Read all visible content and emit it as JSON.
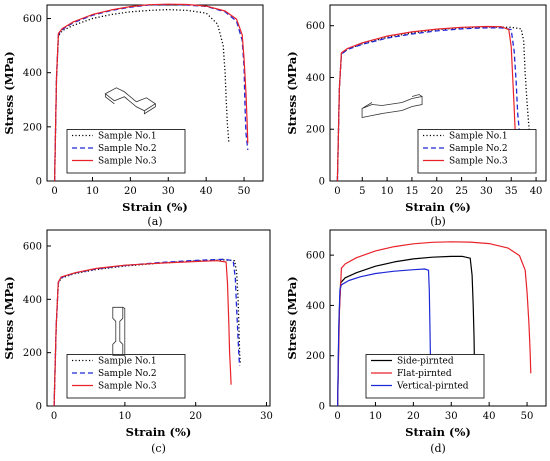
{
  "colors": {
    "series1": "#000000",
    "series2": "#1f28d6",
    "series3": "#e8222a",
    "axis": "#000000"
  },
  "chart_data": [
    {
      "type": "line",
      "panel_label": "(a)",
      "xlabel": "Strain (%)",
      "ylabel": "Stress (MPa)",
      "xlim": [
        -2,
        55
      ],
      "ylim": [
        0,
        650
      ],
      "xticks": [
        0,
        10,
        20,
        30,
        40,
        50
      ],
      "yticks": [
        0,
        200,
        400,
        600
      ],
      "legend_position": "bottom-left",
      "inset_icon": "dogbone-specimen-flat-icon",
      "series": [
        {
          "name": "Sample No.1",
          "style": "dotted",
          "color": "#000000",
          "points": [
            [
              0,
              0
            ],
            [
              0.5,
              380
            ],
            [
              1,
              535
            ],
            [
              2,
              555
            ],
            [
              5,
              575
            ],
            [
              10,
              600
            ],
            [
              15,
              615
            ],
            [
              20,
              625
            ],
            [
              25,
              630
            ],
            [
              30,
              633
            ],
            [
              35,
              630
            ],
            [
              40,
              620
            ],
            [
              43,
              580
            ],
            [
              44.5,
              500
            ],
            [
              45,
              400
            ],
            [
              45.3,
              300
            ],
            [
              45.6,
              210
            ],
            [
              46,
              140
            ]
          ]
        },
        {
          "name": "Sample No.2",
          "style": "dashed",
          "color": "#1f28d6",
          "points": [
            [
              0,
              0
            ],
            [
              0.5,
              380
            ],
            [
              1,
              540
            ],
            [
              2,
              560
            ],
            [
              5,
              585
            ],
            [
              10,
              612
            ],
            [
              15,
              630
            ],
            [
              20,
              642
            ],
            [
              25,
              650
            ],
            [
              30,
              652
            ],
            [
              35,
              650
            ],
            [
              40,
              645
            ],
            [
              45,
              625
            ],
            [
              48,
              590
            ],
            [
              49.5,
              520
            ],
            [
              50,
              420
            ],
            [
              50.2,
              300
            ],
            [
              50.5,
              180
            ],
            [
              51,
              115
            ]
          ]
        },
        {
          "name": "Sample No.3",
          "style": "solid",
          "color": "#e8222a",
          "points": [
            [
              0,
              0
            ],
            [
              0.5,
              380
            ],
            [
              1,
              545
            ],
            [
              2,
              563
            ],
            [
              5,
              588
            ],
            [
              10,
              615
            ],
            [
              15,
              632
            ],
            [
              20,
              644
            ],
            [
              25,
              651
            ],
            [
              30,
              653
            ],
            [
              35,
              652
            ],
            [
              40,
              646
            ],
            [
              45,
              628
            ],
            [
              48,
              598
            ],
            [
              49.5,
              540
            ],
            [
              50,
              450
            ],
            [
              50.5,
              330
            ],
            [
              50.8,
              220
            ],
            [
              51,
              140
            ]
          ]
        }
      ]
    },
    {
      "type": "line",
      "panel_label": "(b)",
      "xlabel": "Strain (%)",
      "ylabel": "Stress (MPa)",
      "xlim": [
        -1.5,
        42
      ],
      "ylim": [
        0,
        680
      ],
      "xticks": [
        0,
        5,
        10,
        15,
        20,
        25,
        30,
        35,
        40
      ],
      "yticks": [
        0,
        200,
        400,
        600
      ],
      "legend_position": "bottom-right",
      "inset_icon": "dogbone-specimen-side-icon",
      "series": [
        {
          "name": "Sample No.1",
          "style": "dotted",
          "color": "#000000",
          "points": [
            [
              0,
              0
            ],
            [
              0.4,
              360
            ],
            [
              0.8,
              490
            ],
            [
              2,
              510
            ],
            [
              5,
              530
            ],
            [
              10,
              555
            ],
            [
              15,
              572
            ],
            [
              20,
              585
            ],
            [
              25,
              592
            ],
            [
              30,
              595
            ],
            [
              35,
              594
            ],
            [
              37,
              588
            ],
            [
              37.5,
              540
            ],
            [
              37.8,
              420
            ],
            [
              38.2,
              300
            ],
            [
              38.6,
              200
            ],
            [
              39.2,
              100
            ]
          ]
        },
        {
          "name": "Sample No.2",
          "style": "dashed",
          "color": "#1f28d6",
          "points": [
            [
              0,
              0
            ],
            [
              0.4,
              360
            ],
            [
              0.8,
              490
            ],
            [
              2,
              508
            ],
            [
              5,
              528
            ],
            [
              10,
              552
            ],
            [
              15,
              568
            ],
            [
              20,
              580
            ],
            [
              25,
              588
            ],
            [
              30,
              592
            ],
            [
              33,
              592
            ],
            [
              35,
              585
            ],
            [
              35.6,
              500
            ],
            [
              36,
              380
            ],
            [
              36.3,
              260
            ],
            [
              36.7,
              180
            ],
            [
              37,
              120
            ]
          ]
        },
        {
          "name": "Sample No.3",
          "style": "solid",
          "color": "#e8222a",
          "points": [
            [
              0,
              0
            ],
            [
              0.4,
              360
            ],
            [
              0.8,
              495
            ],
            [
              2,
              512
            ],
            [
              5,
              534
            ],
            [
              10,
              560
            ],
            [
              15,
              576
            ],
            [
              20,
              587
            ],
            [
              25,
              594
            ],
            [
              30,
              597
            ],
            [
              33,
              596
            ],
            [
              34.5,
              585
            ],
            [
              35,
              520
            ],
            [
              35.3,
              400
            ],
            [
              35.6,
              280
            ],
            [
              35.8,
              190
            ],
            [
              35.5,
              90
            ]
          ]
        }
      ]
    },
    {
      "type": "line",
      "panel_label": "(c)",
      "xlabel": "Strain (%)",
      "ylabel": "Stress (MPa)",
      "xlim": [
        -1,
        30.5
      ],
      "ylim": [
        0,
        660
      ],
      "xticks": [
        0,
        10,
        20,
        30
      ],
      "yticks": [
        0,
        200,
        400,
        600
      ],
      "legend_position": "bottom-left",
      "inset_icon": "dogbone-specimen-vertical-icon",
      "series": [
        {
          "name": "Sample No.1",
          "style": "dotted",
          "color": "#000000",
          "points": [
            [
              0,
              0
            ],
            [
              0.3,
              300
            ],
            [
              0.6,
              460
            ],
            [
              1,
              480
            ],
            [
              3,
              497
            ],
            [
              6,
              512
            ],
            [
              10,
              525
            ],
            [
              15,
              536
            ],
            [
              20,
              544
            ],
            [
              24,
              548
            ],
            [
              25.5,
              545
            ],
            [
              25.8,
              500
            ],
            [
              26,
              400
            ],
            [
              26.1,
              300
            ],
            [
              26.2,
              200
            ],
            [
              26.3,
              160
            ]
          ]
        },
        {
          "name": "Sample No.2",
          "style": "dashed",
          "color": "#1f28d6",
          "points": [
            [
              0,
              0
            ],
            [
              0.3,
              300
            ],
            [
              0.6,
              462
            ],
            [
              1,
              482
            ],
            [
              3,
              499
            ],
            [
              6,
              514
            ],
            [
              10,
              527
            ],
            [
              15,
              538
            ],
            [
              20,
              546
            ],
            [
              24,
              550
            ],
            [
              25.3,
              545
            ],
            [
              25.6,
              480
            ],
            [
              25.8,
              360
            ],
            [
              26,
              250
            ],
            [
              26.1,
              190
            ],
            [
              26.2,
              150
            ]
          ]
        },
        {
          "name": "Sample No.3",
          "style": "solid",
          "color": "#e8222a",
          "points": [
            [
              0,
              0
            ],
            [
              0.3,
              300
            ],
            [
              0.6,
              465
            ],
            [
              1,
              484
            ],
            [
              3,
              500
            ],
            [
              6,
              516
            ],
            [
              10,
              528
            ],
            [
              15,
              536
            ],
            [
              20,
              542
            ],
            [
              23,
              545
            ],
            [
              24.3,
              540
            ],
            [
              24.5,
              460
            ],
            [
              24.7,
              300
            ],
            [
              24.8,
              200
            ],
            [
              24.9,
              140
            ],
            [
              25,
              80
            ]
          ]
        }
      ]
    },
    {
      "type": "line",
      "panel_label": "(d)",
      "xlabel": "Strain (%)",
      "ylabel": "Stress (MPa)",
      "xlim": [
        -2,
        55
      ],
      "ylim": [
        0,
        700
      ],
      "xticks": [
        0,
        10,
        20,
        30,
        40,
        50
      ],
      "yticks": [
        0,
        200,
        400,
        600
      ],
      "legend_position": "bottom-center",
      "series": [
        {
          "name": "Side-pirnted",
          "style": "solid",
          "color": "#000000",
          "points": [
            [
              0,
              0
            ],
            [
              0.4,
              360
            ],
            [
              0.8,
              490
            ],
            [
              2,
              510
            ],
            [
              5,
              530
            ],
            [
              10,
              556
            ],
            [
              15,
              573
            ],
            [
              20,
              585
            ],
            [
              25,
              592
            ],
            [
              30,
              595
            ],
            [
              33,
              595
            ],
            [
              35,
              588
            ],
            [
              35.5,
              520
            ],
            [
              35.8,
              400
            ],
            [
              36,
              280
            ],
            [
              36.1,
              180
            ],
            [
              36.2,
              90
            ]
          ]
        },
        {
          "name": "Flat-pirnted",
          "style": "solid",
          "color": "#e8222a",
          "points": [
            [
              0,
              0
            ],
            [
              0.5,
              380
            ],
            [
              1,
              548
            ],
            [
              2,
              565
            ],
            [
              5,
              590
            ],
            [
              10,
              617
            ],
            [
              15,
              634
            ],
            [
              20,
              645
            ],
            [
              25,
              651
            ],
            [
              30,
              653
            ],
            [
              35,
              652
            ],
            [
              40,
              646
            ],
            [
              45,
              628
            ],
            [
              48,
              598
            ],
            [
              49.5,
              540
            ],
            [
              50,
              450
            ],
            [
              50.5,
              330
            ],
            [
              50.8,
              220
            ],
            [
              51,
              130
            ]
          ]
        },
        {
          "name": "Vertical-pirnted",
          "style": "solid",
          "color": "#1f28d6",
          "points": [
            [
              0,
              0
            ],
            [
              0.3,
              300
            ],
            [
              0.6,
              462
            ],
            [
              1,
              482
            ],
            [
              3,
              499
            ],
            [
              6,
              514
            ],
            [
              10,
              527
            ],
            [
              15,
              536
            ],
            [
              20,
              542
            ],
            [
              23,
              545
            ],
            [
              24,
              540
            ],
            [
              24.2,
              460
            ],
            [
              24.4,
              300
            ],
            [
              24.5,
              200
            ],
            [
              24.6,
              120
            ]
          ]
        }
      ]
    }
  ]
}
